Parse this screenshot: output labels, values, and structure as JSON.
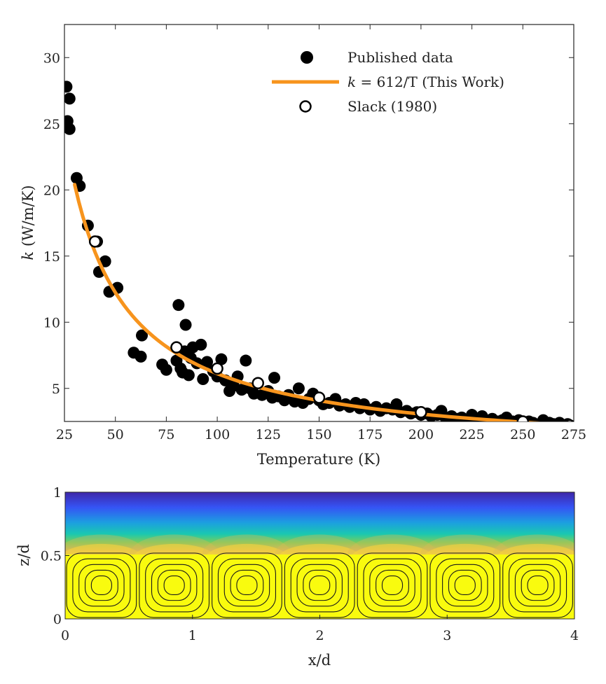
{
  "colors": {
    "published": "#000000",
    "fit_line": "#F7941D",
    "slack_fill": "#ffffff",
    "slack_stroke": "#000000",
    "streamline": "#1a1a1a",
    "colormap": [
      "#3e26a8",
      "#3554f5",
      "#1c9fe0",
      "#1ac8b0",
      "#7bcd5a",
      "#d9ba56",
      "#f9d43c",
      "#f9fb0e"
    ]
  },
  "chart_data": [
    {
      "type": "scatter",
      "xlabel": "Temperature (K)",
      "ylabel_italic": "k",
      "ylabel_rest": " (W/m/K)",
      "xlim": [
        25,
        275
      ],
      "ylim": [
        2.5,
        32.5
      ],
      "xticks": [
        25,
        50,
        75,
        100,
        125,
        150,
        175,
        200,
        225,
        250,
        275
      ],
      "yticks": [
        5,
        10,
        15,
        20,
        25,
        30
      ],
      "grid": false,
      "legend_position": "top-right",
      "series": [
        {
          "name": "Published data",
          "kind": "scatter",
          "points": [
            [
              26,
              27.8
            ],
            [
              26.5,
              25.2
            ],
            [
              27.5,
              26.9
            ],
            [
              27.5,
              24.6
            ],
            [
              31,
              20.9
            ],
            [
              32.5,
              20.3
            ],
            [
              36.5,
              17.3
            ],
            [
              41,
              16.1
            ],
            [
              42,
              13.8
            ],
            [
              45,
              14.6
            ],
            [
              47,
              12.3
            ],
            [
              51,
              12.6
            ],
            [
              59,
              7.7
            ],
            [
              62.5,
              7.4
            ],
            [
              63,
              9.0
            ],
            [
              73,
              6.8
            ],
            [
              75,
              6.4
            ],
            [
              80,
              7.1
            ],
            [
              81,
              11.3
            ],
            [
              82,
              6.5
            ],
            [
              83,
              6.2
            ],
            [
              84,
              7.8
            ],
            [
              84.5,
              9.8
            ],
            [
              86,
              6.0
            ],
            [
              87,
              7.3
            ],
            [
              88,
              8.1
            ],
            [
              90,
              6.9
            ],
            [
              92,
              8.3
            ],
            [
              93,
              5.7
            ],
            [
              95,
              7.0
            ],
            [
              98,
              6.3
            ],
            [
              100,
              5.9
            ],
            [
              102,
              7.2
            ],
            [
              104,
              5.6
            ],
            [
              106,
              4.8
            ],
            [
              108,
              5.2
            ],
            [
              110,
              5.9
            ],
            [
              112,
              4.9
            ],
            [
              114,
              7.1
            ],
            [
              116,
              5.0
            ],
            [
              118,
              4.6
            ],
            [
              120,
              5.4
            ],
            [
              122,
              4.5
            ],
            [
              125,
              4.8
            ],
            [
              127,
              4.3
            ],
            [
              128,
              5.8
            ],
            [
              130,
              4.4
            ],
            [
              133,
              4.1
            ],
            [
              135,
              4.5
            ],
            [
              138,
              4.0
            ],
            [
              140,
              5.0
            ],
            [
              142,
              3.9
            ],
            [
              145,
              4.2
            ],
            [
              147,
              4.6
            ],
            [
              150,
              4.1
            ],
            [
              152,
              3.8
            ],
            [
              155,
              3.9
            ],
            [
              158,
              4.2
            ],
            [
              160,
              3.7
            ],
            [
              163,
              3.8
            ],
            [
              165,
              3.6
            ],
            [
              168,
              3.9
            ],
            [
              170,
              3.5
            ],
            [
              172,
              3.8
            ],
            [
              175,
              3.4
            ],
            [
              178,
              3.6
            ],
            [
              180,
              3.3
            ],
            [
              183,
              3.5
            ],
            [
              186,
              3.4
            ],
            [
              188,
              3.8
            ],
            [
              190,
              3.2
            ],
            [
              193,
              3.3
            ],
            [
              195,
              3.1
            ],
            [
              198,
              3.2
            ],
            [
              200,
              3.0
            ],
            [
              203,
              3.1
            ],
            [
              205,
              2.9
            ],
            [
              208,
              3.0
            ],
            [
              210,
              3.3
            ],
            [
              212,
              2.8
            ],
            [
              215,
              2.9
            ],
            [
              218,
              2.7
            ],
            [
              220,
              2.8
            ],
            [
              223,
              2.6
            ],
            [
              225,
              3.0
            ],
            [
              228,
              2.7
            ],
            [
              230,
              2.9
            ],
            [
              232,
              2.6
            ],
            [
              235,
              2.7
            ],
            [
              238,
              2.5
            ],
            [
              240,
              2.6
            ],
            [
              242,
              2.8
            ],
            [
              245,
              2.5
            ],
            [
              248,
              2.6
            ],
            [
              250,
              2.4
            ],
            [
              253,
              2.5
            ],
            [
              255,
              2.4
            ],
            [
              258,
              2.3
            ],
            [
              260,
              2.6
            ],
            [
              263,
              2.4
            ],
            [
              265,
              2.3
            ],
            [
              268,
              2.4
            ],
            [
              270,
              2.2
            ],
            [
              272,
              2.3
            ]
          ]
        },
        {
          "name_italic": "k",
          "name_rest": " = 612/T (This Work)",
          "kind": "line",
          "formula": "612/T",
          "x_range": [
            30,
            272
          ]
        },
        {
          "name": "Slack (1980)",
          "kind": "scatter-open",
          "points": [
            [
              40,
              16.1
            ],
            [
              80,
              8.1
            ],
            [
              100,
              6.5
            ],
            [
              120,
              5.4
            ],
            [
              150,
              4.3
            ],
            [
              200,
              3.2
            ],
            [
              250,
              2.5
            ],
            [
              273,
              2.2
            ]
          ]
        }
      ]
    },
    {
      "type": "heatmap",
      "xlabel": "x/d",
      "ylabel": "z/d",
      "xlim": [
        0,
        4
      ],
      "ylim": [
        0,
        1
      ],
      "xticks": [
        "0",
        "1",
        "2",
        "3",
        "4"
      ],
      "yticks": [
        "0",
        "0.5",
        "1"
      ],
      "cells": 7,
      "cell_width": 0.571,
      "contour_levels": 5,
      "convection_top": 0.53
    }
  ]
}
